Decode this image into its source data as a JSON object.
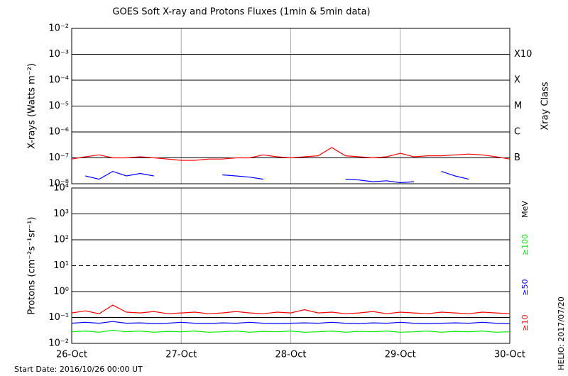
{
  "chart_data": [
    {
      "type": "line",
      "title": "GOES Soft X-ray and Protons Fluxes   (1min & 5min data)",
      "y_label": "X-rays (Watts m⁻²)",
      "y2_label": "Xray Class",
      "log_y": true,
      "xlim": [
        0,
        96
      ],
      "xticks": [
        0,
        24,
        48,
        72,
        96
      ],
      "ylim": [
        1e-08,
        0.01
      ],
      "yticks": [
        {
          "value": 1e-08,
          "label": "10⁻⁸"
        },
        {
          "value": 1e-07,
          "label": "10⁻⁷"
        },
        {
          "value": 1e-06,
          "label": "10⁻⁶"
        },
        {
          "value": 1e-05,
          "label": "10⁻⁵"
        },
        {
          "value": 0.0001,
          "label": "10⁻⁴"
        },
        {
          "value": 0.001,
          "label": "10⁻³"
        },
        {
          "value": 0.01,
          "label": "10⁻²"
        }
      ],
      "y2ticks": [
        {
          "value": 1e-07,
          "label": "B"
        },
        {
          "value": 1e-06,
          "label": "C"
        },
        {
          "value": 1e-05,
          "label": "M"
        },
        {
          "value": 0.0001,
          "label": "X"
        },
        {
          "value": 0.001,
          "label": "X10"
        }
      ],
      "x": [
        0,
        3,
        6,
        9,
        12,
        15,
        18,
        21,
        24,
        27,
        30,
        33,
        36,
        39,
        42,
        45,
        48,
        51,
        54,
        57,
        60,
        63,
        66,
        69,
        72,
        75,
        78,
        81,
        84,
        87,
        90,
        93,
        96
      ],
      "series": [
        {
          "color": "#ff0000",
          "values": [
            9e-08,
            1.1e-07,
            1.3e-07,
            1e-07,
            1e-07,
            1.1e-07,
            1e-07,
            9e-08,
            8e-08,
            8e-08,
            9e-08,
            9e-08,
            1e-07,
            1e-07,
            1.3e-07,
            1.1e-07,
            1e-07,
            1.1e-07,
            1.2e-07,
            2.5e-07,
            1.2e-07,
            1.1e-07,
            1e-07,
            1.1e-07,
            1.5e-07,
            1.1e-07,
            1.2e-07,
            1.2e-07,
            1.3e-07,
            1.4e-07,
            1.3e-07,
            1.1e-07,
            9e-08
          ]
        },
        {
          "color": "#0000ff",
          "values": [
            null,
            2e-08,
            1.5e-08,
            3e-08,
            2e-08,
            2.5e-08,
            2e-08,
            null,
            null,
            null,
            null,
            2.2e-08,
            2e-08,
            1.8e-08,
            1.5e-08,
            null,
            null,
            null,
            null,
            null,
            1.5e-08,
            1.4e-08,
            1.2e-08,
            1.3e-08,
            1.1e-08,
            1.2e-08,
            null,
            3e-08,
            2e-08,
            1.5e-08,
            null,
            null,
            null
          ]
        }
      ]
    },
    {
      "type": "line",
      "y_label": "Protons (cm⁻²s⁻¹sr⁻¹)",
      "legend_title": "MeV",
      "log_y": true,
      "xlim": [
        0,
        96
      ],
      "xticks": [
        {
          "value": 0,
          "label": "26-Oct"
        },
        {
          "value": 24,
          "label": "27-Oct"
        },
        {
          "value": 48,
          "label": "28-Oct"
        },
        {
          "value": 72,
          "label": "29-Oct"
        },
        {
          "value": 96,
          "label": "30-Oct"
        }
      ],
      "ylim": [
        0.01,
        10000
      ],
      "yticks": [
        {
          "value": 0.01,
          "label": "10⁻²"
        },
        {
          "value": 0.1,
          "label": "10⁻¹"
        },
        {
          "value": 1,
          "label": "10⁰"
        },
        {
          "value": 10,
          "label": "10¹"
        },
        {
          "value": 100,
          "label": "10²"
        },
        {
          "value": 1000,
          "label": "10³"
        },
        {
          "value": 10000,
          "label": "10⁴"
        }
      ],
      "threshold": 10,
      "x": [
        0,
        3,
        6,
        9,
        12,
        15,
        18,
        21,
        24,
        27,
        30,
        33,
        36,
        39,
        42,
        45,
        48,
        51,
        54,
        57,
        60,
        63,
        66,
        69,
        72,
        75,
        78,
        81,
        84,
        87,
        90,
        93,
        96
      ],
      "series": [
        {
          "name": "≥10",
          "color": "#ff0000",
          "values": [
            0.15,
            0.18,
            0.14,
            0.3,
            0.16,
            0.15,
            0.17,
            0.14,
            0.15,
            0.16,
            0.14,
            0.15,
            0.17,
            0.15,
            0.14,
            0.16,
            0.15,
            0.2,
            0.15,
            0.16,
            0.14,
            0.15,
            0.17,
            0.14,
            0.16,
            0.15,
            0.14,
            0.16,
            0.15,
            0.14,
            0.16,
            0.15,
            0.14
          ]
        },
        {
          "name": "≥50",
          "color": "#0000ff",
          "values": [
            0.06,
            0.065,
            0.06,
            0.07,
            0.06,
            0.062,
            0.058,
            0.06,
            0.065,
            0.06,
            0.058,
            0.062,
            0.06,
            0.065,
            0.06,
            0.058,
            0.06,
            0.062,
            0.06,
            0.065,
            0.06,
            0.058,
            0.062,
            0.06,
            0.065,
            0.06,
            0.058,
            0.06,
            0.062,
            0.06,
            0.065,
            0.06,
            0.058
          ]
        },
        {
          "name": "≥100",
          "color": "#00ee00",
          "values": [
            0.028,
            0.03,
            0.027,
            0.032,
            0.028,
            0.03,
            0.027,
            0.029,
            0.028,
            0.03,
            0.027,
            0.028,
            0.03,
            0.027,
            0.029,
            0.028,
            0.03,
            0.027,
            0.028,
            0.03,
            0.027,
            0.029,
            0.028,
            0.03,
            0.027,
            0.028,
            0.03,
            0.027,
            0.029,
            0.028,
            0.03,
            0.027,
            0.028
          ]
        }
      ]
    }
  ],
  "footer": {
    "start_date": "Start Date: 2016/10/26 00:00 UT",
    "credit": "HELIO: 2017/07/20"
  }
}
